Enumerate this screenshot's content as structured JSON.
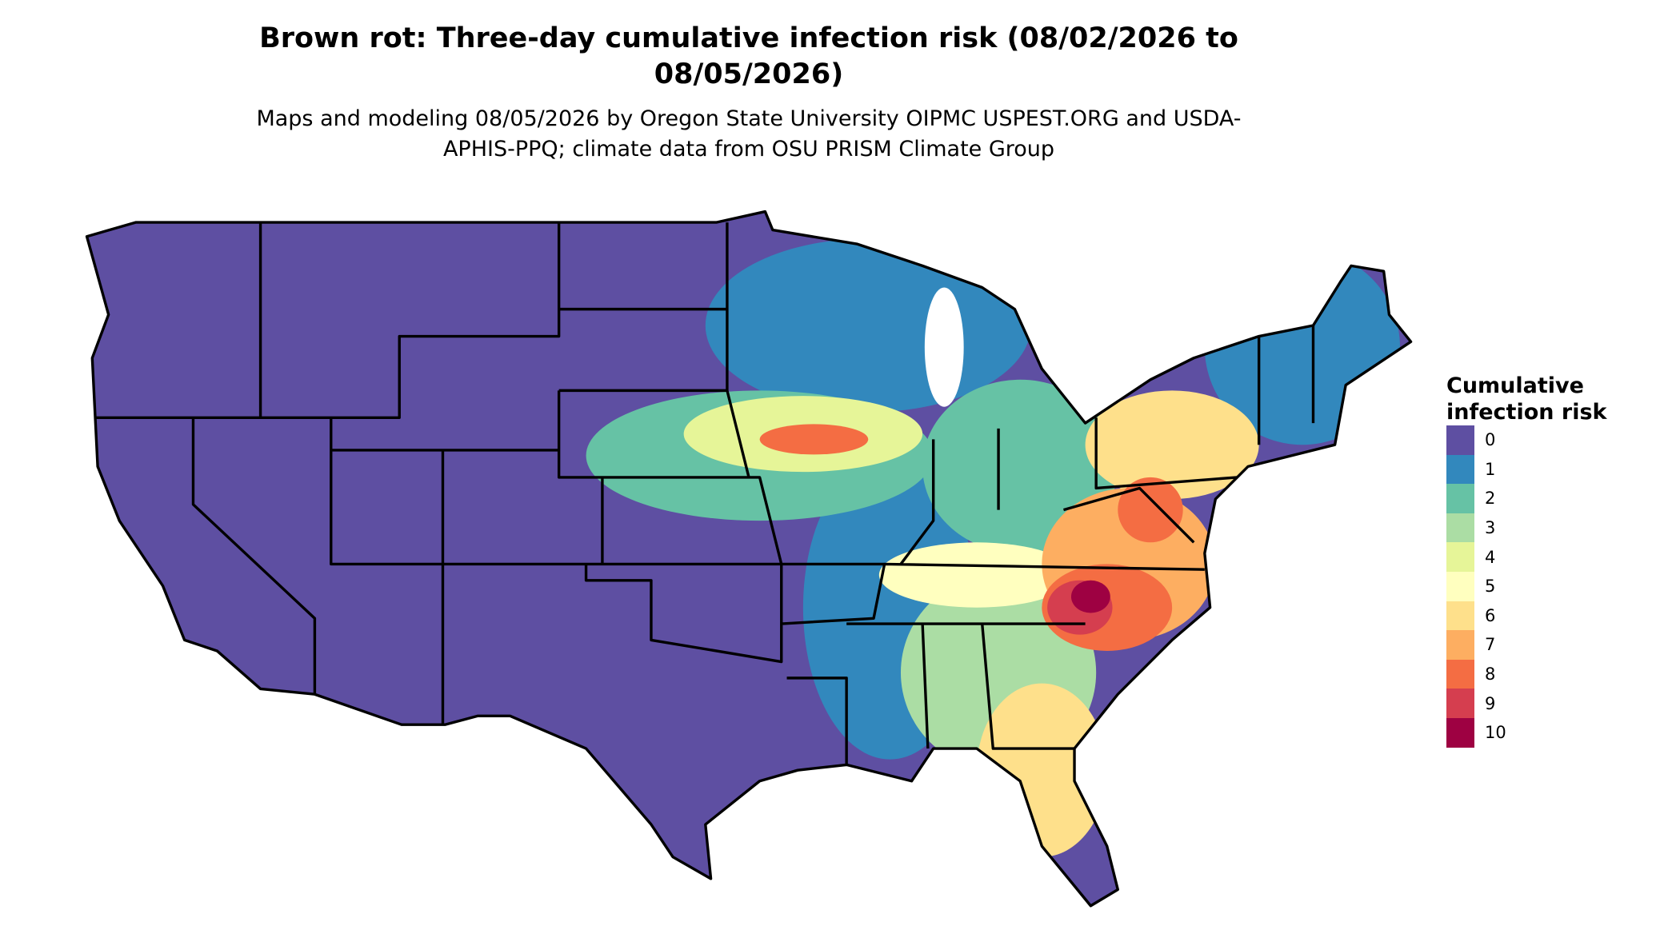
{
  "header": {
    "title": "Brown rot: Three-day cumulative infection risk (08/02/2026 to 08/05/2026)",
    "subtitle": "Maps and modeling 08/05/2026 by Oregon State University OIPMC USPEST.ORG and USDA-APHIS-PPQ; climate data from OSU PRISM Climate Group"
  },
  "legend": {
    "title": "Cumulative infection risk",
    "entries": [
      {
        "label": 0,
        "color": "#5e4fa2"
      },
      {
        "label": 1,
        "color": "#3288bd"
      },
      {
        "label": 2,
        "color": "#66c2a5"
      },
      {
        "label": 3,
        "color": "#abdda4"
      },
      {
        "label": 4,
        "color": "#e6f598"
      },
      {
        "label": 5,
        "color": "#ffffbf"
      },
      {
        "label": 6,
        "color": "#fee08b"
      },
      {
        "label": 7,
        "color": "#fdae61"
      },
      {
        "label": 8,
        "color": "#f46d43"
      },
      {
        "label": 9,
        "color": "#d53e4f"
      },
      {
        "label": 10,
        "color": "#9e0142"
      }
    ]
  }
}
